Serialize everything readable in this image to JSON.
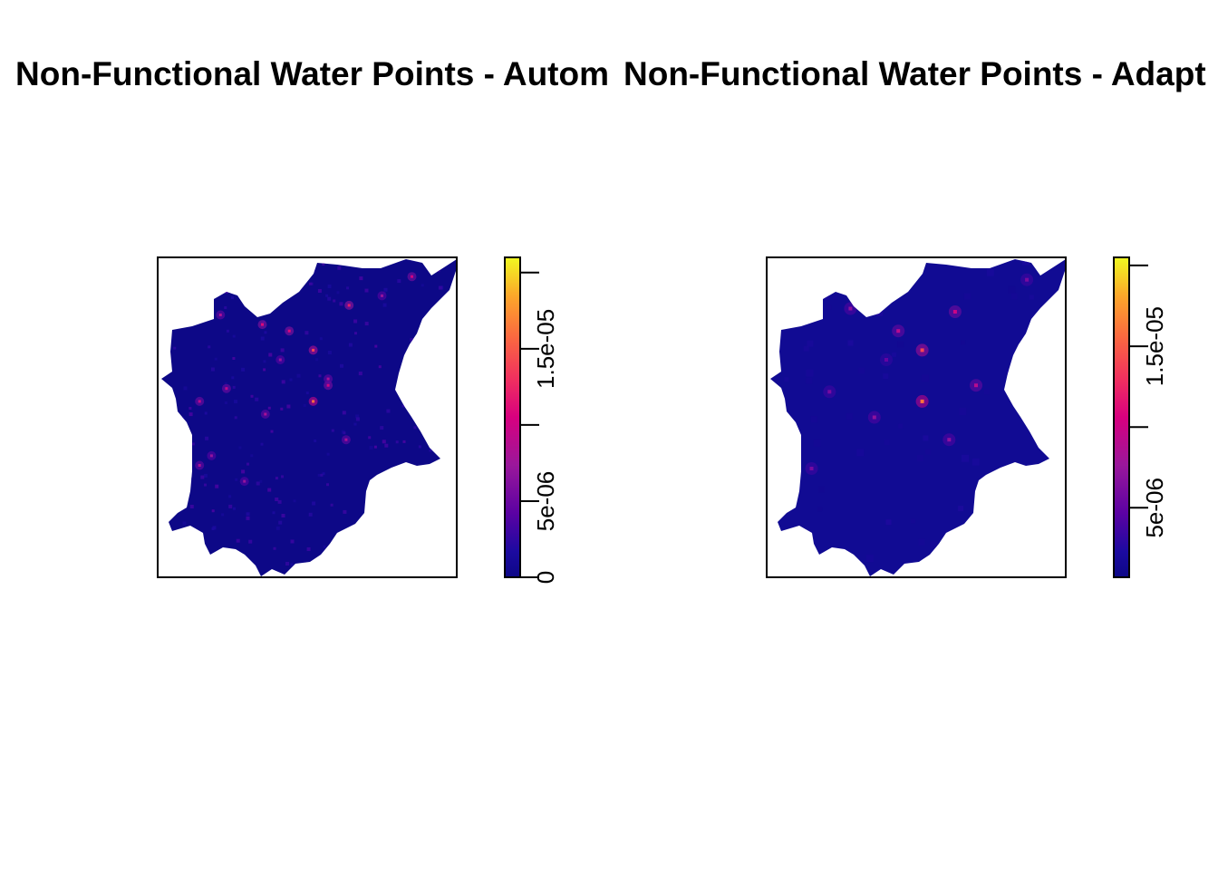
{
  "chart_data": [
    {
      "type": "heatmap",
      "title": "Non-Functional Water Points - Autom",
      "xlabel": "",
      "ylabel": "",
      "axes_shown": false,
      "colorbar": {
        "palette": "plasma",
        "range": [
          0,
          2.1e-05
        ],
        "ticks": [
          0,
          5e-06,
          1e-05,
          1.5e-05,
          2e-05
        ],
        "tick_labels": [
          "0",
          "5e-06",
          "",
          "1.5e-05",
          ""
        ],
        "position": "right"
      },
      "hotspots": [
        {
          "x": 0.52,
          "y": 0.45,
          "value": 1.6e-05
        },
        {
          "x": 0.52,
          "y": 0.29,
          "value": 1.4e-05
        },
        {
          "x": 0.35,
          "y": 0.21,
          "value": 1.1e-05
        },
        {
          "x": 0.57,
          "y": 0.4,
          "value": 1e-05
        },
        {
          "x": 0.64,
          "y": 0.15,
          "value": 1.2e-05
        },
        {
          "x": 0.44,
          "y": 0.23,
          "value": 1.1e-05
        },
        {
          "x": 0.14,
          "y": 0.45,
          "value": 9e-06
        },
        {
          "x": 0.85,
          "y": 0.06,
          "value": 1e-05
        },
        {
          "x": 0.23,
          "y": 0.41,
          "value": 9e-06
        },
        {
          "x": 0.21,
          "y": 0.18,
          "value": 8e-06
        },
        {
          "x": 0.63,
          "y": 0.57,
          "value": 8e-06
        },
        {
          "x": 0.36,
          "y": 0.49,
          "value": 8e-06
        },
        {
          "x": 0.14,
          "y": 0.65,
          "value": 8e-06
        },
        {
          "x": 0.41,
          "y": 0.32,
          "value": 7e-06
        },
        {
          "x": 0.29,
          "y": 0.7,
          "value": 7e-06
        },
        {
          "x": 0.57,
          "y": 0.38,
          "value": 8e-06
        },
        {
          "x": 0.75,
          "y": 0.12,
          "value": 7e-06
        },
        {
          "x": 0.18,
          "y": 0.62,
          "value": 7e-06
        }
      ]
    },
    {
      "type": "heatmap",
      "title": "Non-Functional Water Points - Adapt",
      "xlabel": "",
      "ylabel": "",
      "axes_shown": false,
      "colorbar": {
        "palette": "plasma",
        "range": [
          7e-07,
          2.05e-05
        ],
        "ticks": [
          5e-06,
          1e-05,
          1.5e-05,
          2e-05
        ],
        "tick_labels": [
          "5e-06",
          "",
          "1.5e-05",
          ""
        ],
        "position": "right"
      },
      "hotspots": [
        {
          "x": 0.52,
          "y": 0.45,
          "value": 1.6e-05
        },
        {
          "x": 0.52,
          "y": 0.29,
          "value": 1.4e-05
        },
        {
          "x": 0.63,
          "y": 0.17,
          "value": 1e-05
        },
        {
          "x": 0.44,
          "y": 0.23,
          "value": 9e-06
        },
        {
          "x": 0.7,
          "y": 0.4,
          "value": 9e-06
        },
        {
          "x": 0.28,
          "y": 0.16,
          "value": 7e-06
        },
        {
          "x": 0.61,
          "y": 0.57,
          "value": 7e-06
        },
        {
          "x": 0.36,
          "y": 0.5,
          "value": 7e-06
        },
        {
          "x": 0.15,
          "y": 0.66,
          "value": 6e-06
        },
        {
          "x": 0.87,
          "y": 0.07,
          "value": 6e-06
        },
        {
          "x": 0.21,
          "y": 0.42,
          "value": 6e-06
        },
        {
          "x": 0.4,
          "y": 0.32,
          "value": 5e-06
        }
      ]
    }
  ]
}
